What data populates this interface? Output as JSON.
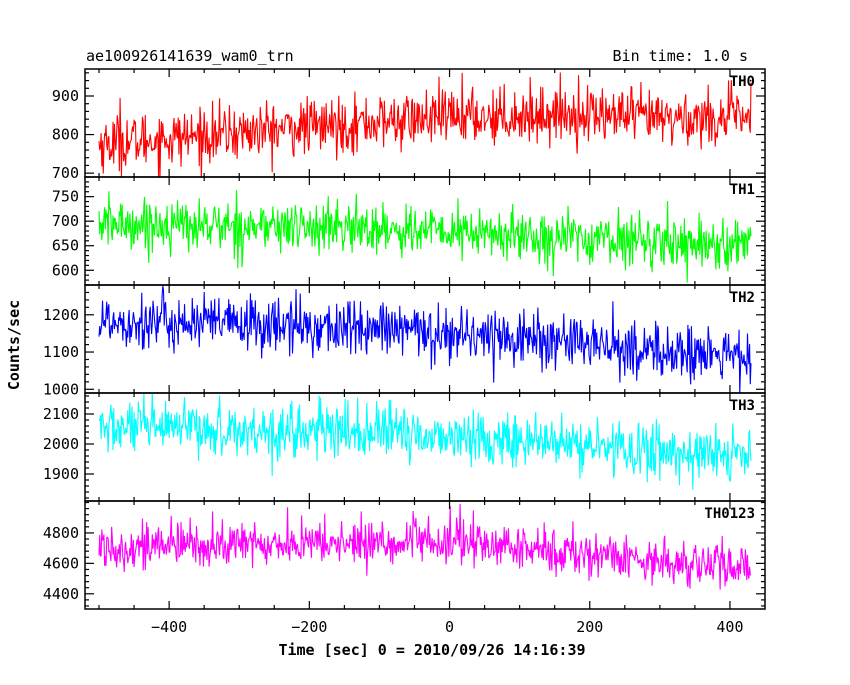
{
  "chart_data": {
    "type": "line",
    "title": "ae100926141639_wam0_trn",
    "subtitle": "Bin time: 1.0 s",
    "xlabel": "Time [sec] 0 = 2010/09/26 14:16:39",
    "ylabel": "Counts/sec",
    "xlim": [
      -520,
      450
    ],
    "data_x_range": [
      -500,
      430
    ],
    "bin_time_s": 1.0,
    "x_ticks": [
      -400,
      -200,
      0,
      200,
      400
    ],
    "x_tick_labels": [
      "−400",
      "−200",
      "0",
      "200",
      "400"
    ],
    "panels": [
      {
        "series_name": "TH0",
        "color": "#ff0000",
        "ylim": [
          690,
          970
        ],
        "y_ticks": [
          700,
          800,
          900
        ],
        "trend": [
          [
            -500,
            775
          ],
          [
            -400,
            790
          ],
          [
            -200,
            820
          ],
          [
            0,
            845
          ],
          [
            100,
            850
          ],
          [
            200,
            855
          ],
          [
            300,
            840
          ],
          [
            430,
            845
          ]
        ],
        "noise": 36,
        "spikes": [
          [
            18,
            960
          ],
          [
            -470,
            895
          ]
        ]
      },
      {
        "series_name": "TH1",
        "color": "#00ff00",
        "ylim": [
          570,
          790
        ],
        "y_ticks": [
          600,
          650,
          700,
          750
        ],
        "trend": [
          [
            -500,
            695
          ],
          [
            -300,
            690
          ],
          [
            -100,
            685
          ],
          [
            100,
            670
          ],
          [
            300,
            660
          ],
          [
            430,
            650
          ]
        ],
        "noise": 26,
        "spikes": []
      },
      {
        "series_name": "TH2",
        "color": "#0000ff",
        "ylim": [
          990,
          1280
        ],
        "y_ticks": [
          1000,
          1100,
          1200
        ],
        "trend": [
          [
            -500,
            1185
          ],
          [
            -300,
            1175
          ],
          [
            -100,
            1160
          ],
          [
            100,
            1140
          ],
          [
            200,
            1120
          ],
          [
            300,
            1100
          ],
          [
            430,
            1085
          ]
        ],
        "noise": 38,
        "spikes": []
      },
      {
        "series_name": "TH3",
        "color": "#00ffff",
        "ylim": [
          1810,
          2170
        ],
        "y_ticks": [
          1900,
          2000,
          2100
        ],
        "trend": [
          [
            -500,
            2055
          ],
          [
            -300,
            2045
          ],
          [
            -100,
            2040
          ],
          [
            100,
            2010
          ],
          [
            300,
            1975
          ],
          [
            430,
            1960
          ]
        ],
        "noise": 45,
        "spikes": []
      },
      {
        "series_name": "TH0123",
        "color": "#ff00ff",
        "ylim": [
          4300,
          5010
        ],
        "y_ticks": [
          4400,
          4600,
          4800
        ],
        "trend": [
          [
            -500,
            4710
          ],
          [
            -300,
            4725
          ],
          [
            -100,
            4735
          ],
          [
            0,
            4740
          ],
          [
            200,
            4660
          ],
          [
            300,
            4620
          ],
          [
            430,
            4560
          ]
        ],
        "noise": 75,
        "spikes": [
          [
            15,
            4990
          ]
        ]
      }
    ],
    "grid": false,
    "legend": "panel labels top-right"
  }
}
